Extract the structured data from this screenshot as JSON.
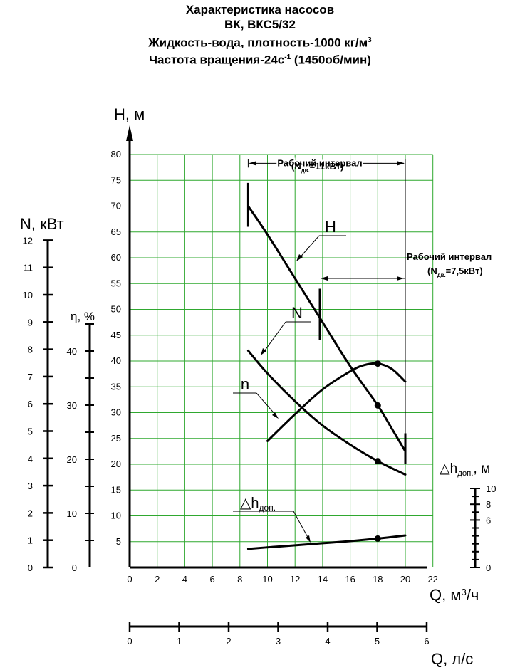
{
  "title_lines": [
    "Характеристика насосов",
    "ВК, ВКС5/32",
    "Жидкость-вода, плотность-1000 кг/м",
    "Частота вращения-24с"
  ],
  "title_sup": {
    "line3": "3",
    "line4": "-1"
  },
  "title_tail": {
    "line4": " (1450об/мин)"
  },
  "chart_data": {
    "type": "line",
    "axes": {
      "H": {
        "label": "H, м",
        "range": [
          0,
          80
        ],
        "ticks": [
          5,
          10,
          15,
          20,
          25,
          30,
          35,
          40,
          45,
          50,
          55,
          60,
          65,
          70,
          75,
          80
        ]
      },
      "Q_m3h": {
        "label": "Q, м",
        "label_sup": "3",
        "label_tail": "/ч",
        "range": [
          0,
          22
        ],
        "ticks": [
          0,
          2,
          4,
          6,
          8,
          10,
          12,
          14,
          16,
          18,
          20,
          22
        ]
      },
      "Q_ls": {
        "label": "Q, л/с",
        "range": [
          0,
          6
        ],
        "ticks": [
          0,
          1,
          2,
          3,
          4,
          5,
          6
        ]
      },
      "N": {
        "label": "N, кВт",
        "range": [
          0,
          12
        ],
        "ticks": [
          0,
          1,
          2,
          3,
          4,
          5,
          6,
          7,
          8,
          9,
          10,
          11,
          12
        ]
      },
      "eta": {
        "label": "η, %",
        "ticks": [
          0,
          10,
          20,
          30,
          40
        ]
      },
      "dh": {
        "label": "△h",
        "label_sub": "доп.",
        "label_tail": ", м",
        "ticks": [
          0,
          6,
          8,
          10
        ]
      }
    },
    "grid": true,
    "series": [
      {
        "name": "H",
        "axis": "H",
        "points": [
          [
            8.6,
            70
          ],
          [
            10,
            64.5
          ],
          [
            12,
            56
          ],
          [
            14,
            47.5
          ],
          [
            16,
            39
          ],
          [
            18,
            31.4
          ],
          [
            19,
            27
          ],
          [
            20,
            22.5
          ]
        ]
      },
      {
        "name": "N",
        "axis": "H",
        "points": [
          [
            8.6,
            42
          ],
          [
            10,
            37.6
          ],
          [
            12,
            32.2
          ],
          [
            14,
            27.5
          ],
          [
            16,
            23.8
          ],
          [
            18,
            20.6
          ],
          [
            20,
            18
          ]
        ]
      },
      {
        "name": "n",
        "axis": "H",
        "points": [
          [
            10,
            24.5
          ],
          [
            12,
            29.7
          ],
          [
            14,
            34.5
          ],
          [
            16,
            38
          ],
          [
            17,
            39.2
          ],
          [
            18,
            39.5
          ],
          [
            19,
            38.5
          ],
          [
            20,
            36
          ]
        ]
      },
      {
        "name": "△h",
        "name_sub": "доп.",
        "axis": "H",
        "points": [
          [
            8.6,
            3.6
          ],
          [
            10,
            3.9
          ],
          [
            12,
            4.3
          ],
          [
            14,
            4.7
          ],
          [
            16,
            5.1
          ],
          [
            18,
            5.6
          ],
          [
            20,
            6.2
          ]
        ]
      }
    ],
    "markers": [
      [
        18,
        39.5
      ],
      [
        18,
        31.4
      ],
      [
        18,
        20.6
      ],
      [
        18,
        5.6
      ]
    ],
    "intervals": [
      {
        "label": "Рабочий интервал",
        "note_pre": "(N",
        "note_sub": "дв.",
        "note_post": "=11кВт)",
        "from": 8.6,
        "to": 20
      },
      {
        "label": "Рабочий интервал",
        "note_pre": "(N",
        "note_sub": "дв.",
        "note_post": "=7,5кВт)",
        "from": 13.8,
        "to": 20
      }
    ],
    "curve_labels": [
      "H",
      "N",
      "n"
    ]
  }
}
